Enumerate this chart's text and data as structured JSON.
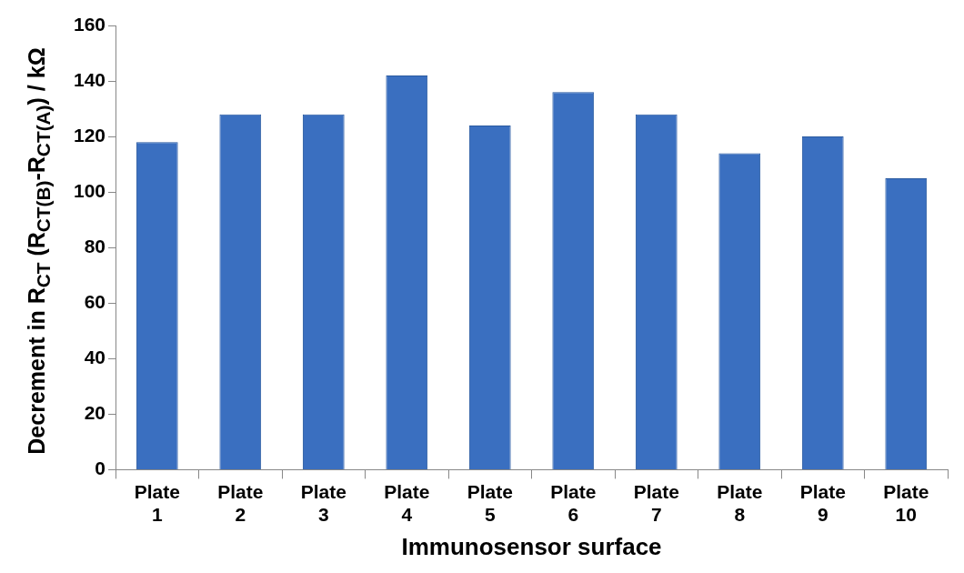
{
  "chart_data": {
    "type": "bar",
    "xlabel": "Immunosensor surface",
    "ylabel": "Decrement in R$_{CT}$ (R$_{CT(B)}$-R$_{CT(A)}$) / kΩ",
    "categories": [
      "Plate 1",
      "Plate 2",
      "Plate 3",
      "Plate 4",
      "Plate 5",
      "Plate 6",
      "Plate 7",
      "Plate 8",
      "Plate 9",
      "Plate 10"
    ],
    "values": [
      118,
      128,
      128,
      142,
      124,
      136,
      128,
      114,
      120,
      105
    ],
    "color": "#3a6fc0",
    "ylim": [
      0,
      160
    ],
    "yticks": [
      0,
      20,
      40,
      60,
      80,
      100,
      120,
      140,
      160
    ],
    "grid": false,
    "legend": false
  }
}
